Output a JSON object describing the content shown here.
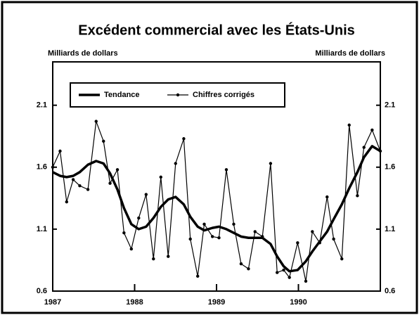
{
  "chart_data": {
    "type": "line",
    "title": "Excédent commercial avec les États-Unis",
    "y_label": "Milliards de dollars",
    "y2_label": "Milliards de dollars",
    "x": [
      1987,
      1987.09,
      1987.17,
      1987.25,
      1987.33,
      1987.43,
      1987.53,
      1987.62,
      1987.7,
      1987.79,
      1987.87,
      1987.96,
      1988.05,
      1988.14,
      1988.23,
      1988.32,
      1988.41,
      1988.5,
      1988.6,
      1988.68,
      1988.77,
      1988.85,
      1988.95,
      1989.03,
      1989.12,
      1989.21,
      1989.3,
      1989.39,
      1989.47,
      1989.56,
      1989.66,
      1989.74,
      1989.82,
      1989.89,
      1989.99,
      1990.09,
      1990.17,
      1990.26,
      1990.35,
      1990.43,
      1990.53,
      1990.62,
      1990.72,
      1990.8,
      1990.9,
      1991
    ],
    "series": [
      {
        "name": "Tendance",
        "color": "#000000",
        "values": [
          1.56,
          1.53,
          1.52,
          1.53,
          1.56,
          1.62,
          1.65,
          1.63,
          1.55,
          1.42,
          1.27,
          1.14,
          1.1,
          1.12,
          1.19,
          1.28,
          1.34,
          1.36,
          1.3,
          1.2,
          1.12,
          1.09,
          1.11,
          1.12,
          1.1,
          1.07,
          1.04,
          1.03,
          1.03,
          1.03,
          0.98,
          0.88,
          0.8,
          0.76,
          0.77,
          0.84,
          0.92,
          1.0,
          1.08,
          1.18,
          1.3,
          1.43,
          1.56,
          1.68,
          1.77,
          1.73
        ]
      },
      {
        "name": "Chiffres corrigés",
        "color": "#000000",
        "values": [
          1.6,
          1.73,
          1.32,
          1.5,
          1.45,
          1.42,
          1.97,
          1.81,
          1.47,
          1.58,
          1.07,
          0.94,
          1.19,
          1.38,
          0.86,
          1.52,
          0.88,
          1.63,
          1.83,
          1.02,
          0.72,
          1.14,
          1.04,
          1.03,
          1.58,
          1.14,
          0.82,
          0.78,
          1.08,
          1.04,
          1.63,
          0.75,
          0.77,
          0.71,
          0.99,
          0.68,
          1.08,
          0.99,
          1.36,
          1.02,
          0.86,
          1.94,
          1.37,
          1.76,
          1.9,
          1.73
        ]
      }
    ],
    "xlim": [
      1987,
      1991
    ],
    "xticks": [
      1987,
      1988,
      1989,
      1990
    ],
    "ylim": [
      0.6,
      2.45
    ],
    "yticks": [
      0.6,
      1.1,
      1.6,
      2.1
    ],
    "y2lim": [
      0.6,
      2.45
    ],
    "y2ticks": [
      0.6,
      1.1,
      1.6,
      2.1
    ],
    "legend": "top-left",
    "grid": false
  }
}
